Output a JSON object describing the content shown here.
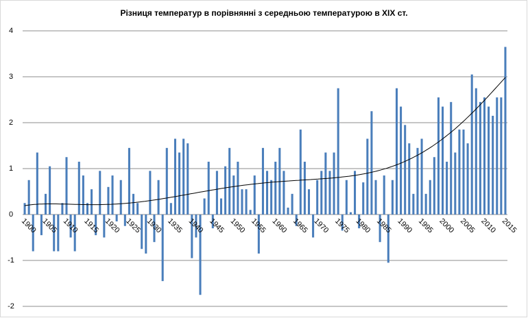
{
  "chart_data": {
    "type": "bar",
    "title": "Різниця температур в порівнянні з середньою температурою в XIX ст.",
    "x": [
      1900,
      1901,
      1902,
      1903,
      1904,
      1905,
      1906,
      1907,
      1908,
      1909,
      1910,
      1911,
      1912,
      1913,
      1914,
      1915,
      1916,
      1917,
      1918,
      1919,
      1920,
      1921,
      1922,
      1923,
      1924,
      1925,
      1926,
      1927,
      1928,
      1929,
      1930,
      1931,
      1932,
      1933,
      1934,
      1935,
      1936,
      1937,
      1938,
      1939,
      1940,
      1941,
      1942,
      1943,
      1944,
      1945,
      1946,
      1947,
      1948,
      1949,
      1950,
      1951,
      1952,
      1953,
      1954,
      1955,
      1956,
      1957,
      1958,
      1959,
      1960,
      1961,
      1962,
      1963,
      1964,
      1965,
      1966,
      1967,
      1968,
      1969,
      1970,
      1971,
      1972,
      1973,
      1974,
      1975,
      1976,
      1977,
      1978,
      1979,
      1980,
      1981,
      1982,
      1983,
      1984,
      1985,
      1986,
      1987,
      1988,
      1989,
      1990,
      1991,
      1992,
      1993,
      1994,
      1995,
      1996,
      1997,
      1998,
      1999,
      2000,
      2001,
      2002,
      2003,
      2004,
      2005,
      2006,
      2007,
      2008,
      2009,
      2010,
      2011,
      2012,
      2013,
      2014,
      2015
    ],
    "values": [
      0.25,
      0.75,
      -0.8,
      1.35,
      -0.45,
      0.45,
      1.05,
      -0.8,
      -0.8,
      0.25,
      1.25,
      -0.5,
      -0.8,
      1.15,
      0.85,
      0.25,
      0.55,
      -0.45,
      0.95,
      -0.5,
      0.6,
      0.85,
      -0.15,
      0.75,
      -0.25,
      1.45,
      0.45,
      0.25,
      -0.75,
      -0.85,
      0.95,
      -0.6,
      0.75,
      -1.45,
      1.45,
      0.25,
      1.65,
      1.35,
      1.65,
      1.55,
      -0.95,
      -0.5,
      -1.75,
      0.35,
      1.15,
      -0.3,
      0.95,
      0.35,
      1.05,
      1.45,
      0.85,
      1.15,
      0.55,
      0.55,
      0.1,
      0.85,
      -0.85,
      1.45,
      0.95,
      0.75,
      1.15,
      1.45,
      0.95,
      0.15,
      0.45,
      -0.25,
      1.85,
      1.15,
      0.55,
      -0.5,
      0.75,
      0.95,
      1.35,
      0.95,
      1.35,
      2.75,
      -0.35,
      0.75,
      0.05,
      0.95,
      -0.3,
      0.7,
      1.65,
      2.25,
      0.75,
      -0.6,
      0.85,
      -1.05,
      0.75,
      2.75,
      2.35,
      1.95,
      1.55,
      0.45,
      1.45,
      1.65,
      0.45,
      0.75,
      1.25,
      2.55,
      2.35,
      1.15,
      2.45,
      1.35,
      1.85,
      1.85,
      1.55,
      3.05,
      2.75,
      2.45,
      2.55,
      2.35,
      2.15,
      2.55,
      2.55,
      3.65
    ],
    "color": "#4a7ebb",
    "xticks": [
      1900,
      1905,
      1910,
      1915,
      1920,
      1925,
      1930,
      1935,
      1940,
      1945,
      1950,
      1955,
      1960,
      1965,
      1970,
      1975,
      1980,
      1985,
      1990,
      1995,
      2000,
      2005,
      2010,
      2015
    ],
    "ylim": [
      -2,
      4
    ],
    "yticks": [
      -2,
      -1,
      0,
      1,
      2,
      3,
      4
    ],
    "grid": true,
    "trendline": "polynomial",
    "trendline_color": "#000000"
  }
}
